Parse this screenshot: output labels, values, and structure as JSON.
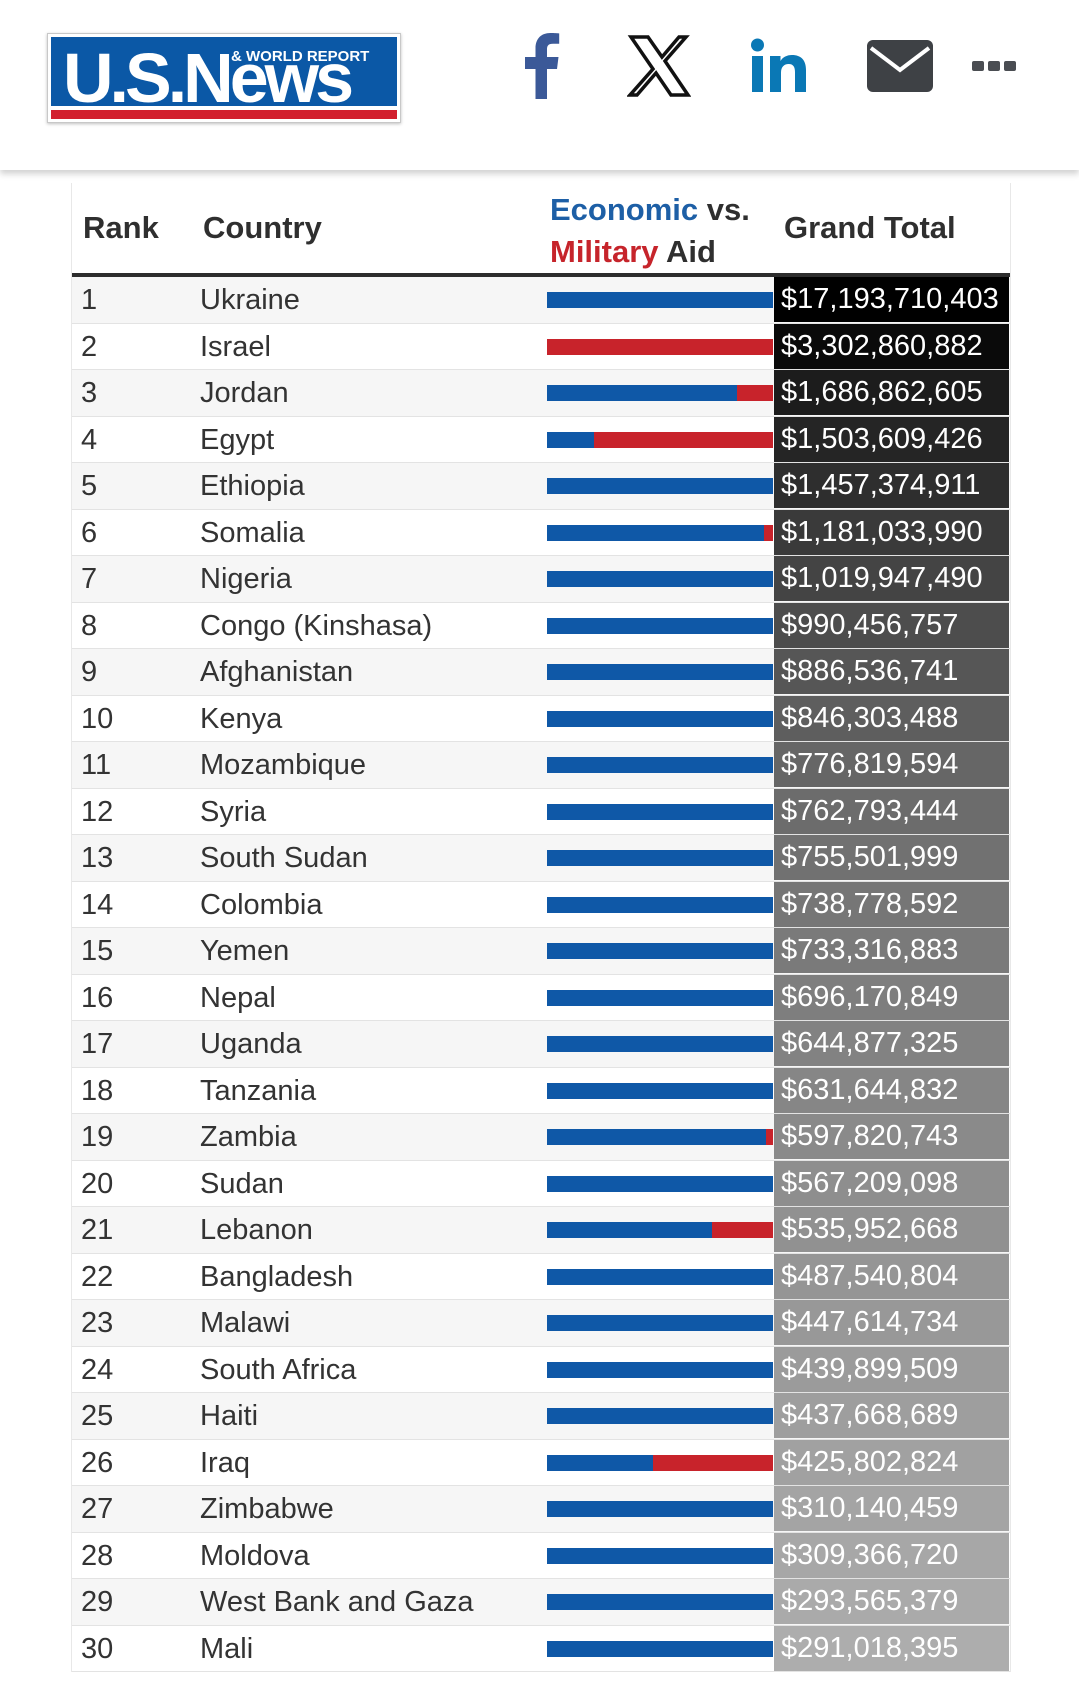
{
  "header": {
    "logo": {
      "main": "U.S.News",
      "sub": "& WORLD REPORT"
    },
    "share": [
      {
        "name": "facebook-icon",
        "color": "#3b5998"
      },
      {
        "name": "x-twitter-icon",
        "color": "#111111"
      },
      {
        "name": "linkedin-icon",
        "color": "#0a78b5"
      },
      {
        "name": "mail-icon",
        "color": "#3e4145"
      },
      {
        "name": "more-icon",
        "color": "#4a4d52"
      }
    ]
  },
  "table": {
    "headers": {
      "rank": "Rank",
      "country": "Country",
      "aid_economic": "Economic",
      "aid_vs": " vs.",
      "aid_military": "Military",
      "aid_aid": " Aid",
      "total": "Grand Total"
    },
    "colors": {
      "economic": "#0f58a7",
      "military": "#c8232b"
    },
    "rows": [
      {
        "rank": "1",
        "country": "Ukraine",
        "military_share": 0.0,
        "total": "$17,193,710,403",
        "shade": "#000000"
      },
      {
        "rank": "2",
        "country": "Israel",
        "military_share": 1.0,
        "total": "$3,302,860,882",
        "shade": "#0a0a0a"
      },
      {
        "rank": "3",
        "country": "Jordan",
        "military_share": 0.16,
        "total": "$1,686,862,605",
        "shade": "#1c1c1c"
      },
      {
        "rank": "4",
        "country": "Egypt",
        "military_share": 0.79,
        "total": "$1,503,609,426",
        "shade": "#252525"
      },
      {
        "rank": "5",
        "country": "Ethiopia",
        "military_share": 0.0,
        "total": "$1,457,374,911",
        "shade": "#2e2e2e"
      },
      {
        "rank": "6",
        "country": "Somalia",
        "military_share": 0.04,
        "total": "$1,181,033,990",
        "shade": "#3a3a3a"
      },
      {
        "rank": "7",
        "country": "Nigeria",
        "military_share": 0.0,
        "total": "$1,019,947,490",
        "shade": "#444444"
      },
      {
        "rank": "8",
        "country": "Congo (Kinshasa)",
        "military_share": 0.0,
        "total": "$990,456,757",
        "shade": "#4d4d4d"
      },
      {
        "rank": "9",
        "country": "Afghanistan",
        "military_share": 0.0,
        "total": "$886,536,741",
        "shade": "#565656"
      },
      {
        "rank": "10",
        "country": "Kenya",
        "military_share": 0.0,
        "total": "$846,303,488",
        "shade": "#5e5e5e"
      },
      {
        "rank": "11",
        "country": "Mozambique",
        "military_share": 0.0,
        "total": "$776,819,594",
        "shade": "#666666"
      },
      {
        "rank": "12",
        "country": "Syria",
        "military_share": 0.0,
        "total": "$762,793,444",
        "shade": "#6c6c6c"
      },
      {
        "rank": "13",
        "country": "South Sudan",
        "military_share": 0.0,
        "total": "$755,501,999",
        "shade": "#717171"
      },
      {
        "rank": "14",
        "country": "Colombia",
        "military_share": 0.0,
        "total": "$738,778,592",
        "shade": "#767676"
      },
      {
        "rank": "15",
        "country": "Yemen",
        "military_share": 0.0,
        "total": "$733,316,883",
        "shade": "#7a7a7a"
      },
      {
        "rank": "16",
        "country": "Nepal",
        "military_share": 0.0,
        "total": "$696,170,849",
        "shade": "#7e7e7e"
      },
      {
        "rank": "17",
        "country": "Uganda",
        "military_share": 0.0,
        "total": "$644,877,325",
        "shade": "#828282"
      },
      {
        "rank": "18",
        "country": "Tanzania",
        "military_share": 0.0,
        "total": "$631,644,832",
        "shade": "#868686"
      },
      {
        "rank": "19",
        "country": "Zambia",
        "military_share": 0.03,
        "total": "$597,820,743",
        "shade": "#8a8a8a"
      },
      {
        "rank": "20",
        "country": "Sudan",
        "military_share": 0.0,
        "total": "$567,209,098",
        "shade": "#8e8e8e"
      },
      {
        "rank": "21",
        "country": "Lebanon",
        "military_share": 0.27,
        "total": "$535,952,668",
        "shade": "#919191"
      },
      {
        "rank": "22",
        "country": "Bangladesh",
        "military_share": 0.0,
        "total": "$487,540,804",
        "shade": "#959595"
      },
      {
        "rank": "23",
        "country": "Malawi",
        "military_share": 0.0,
        "total": "$447,614,734",
        "shade": "#989898"
      },
      {
        "rank": "24",
        "country": "South Africa",
        "military_share": 0.0,
        "total": "$439,899,509",
        "shade": "#9b9b9b"
      },
      {
        "rank": "25",
        "country": "Haiti",
        "military_share": 0.0,
        "total": "$437,668,689",
        "shade": "#9e9e9e"
      },
      {
        "rank": "26",
        "country": "Iraq",
        "military_share": 0.53,
        "total": "$425,802,824",
        "shade": "#a1a1a1"
      },
      {
        "rank": "27",
        "country": "Zimbabwe",
        "military_share": 0.0,
        "total": "$310,140,459",
        "shade": "#a4a4a4"
      },
      {
        "rank": "28",
        "country": "Moldova",
        "military_share": 0.0,
        "total": "$309,366,720",
        "shade": "#a7a7a7"
      },
      {
        "rank": "29",
        "country": "West Bank and Gaza",
        "military_share": 0.0,
        "total": "$293,565,379",
        "shade": "#aaaaaa"
      },
      {
        "rank": "30",
        "country": "Mali",
        "military_share": 0.0,
        "total": "$291,018,395",
        "shade": "#adadad"
      }
    ]
  }
}
